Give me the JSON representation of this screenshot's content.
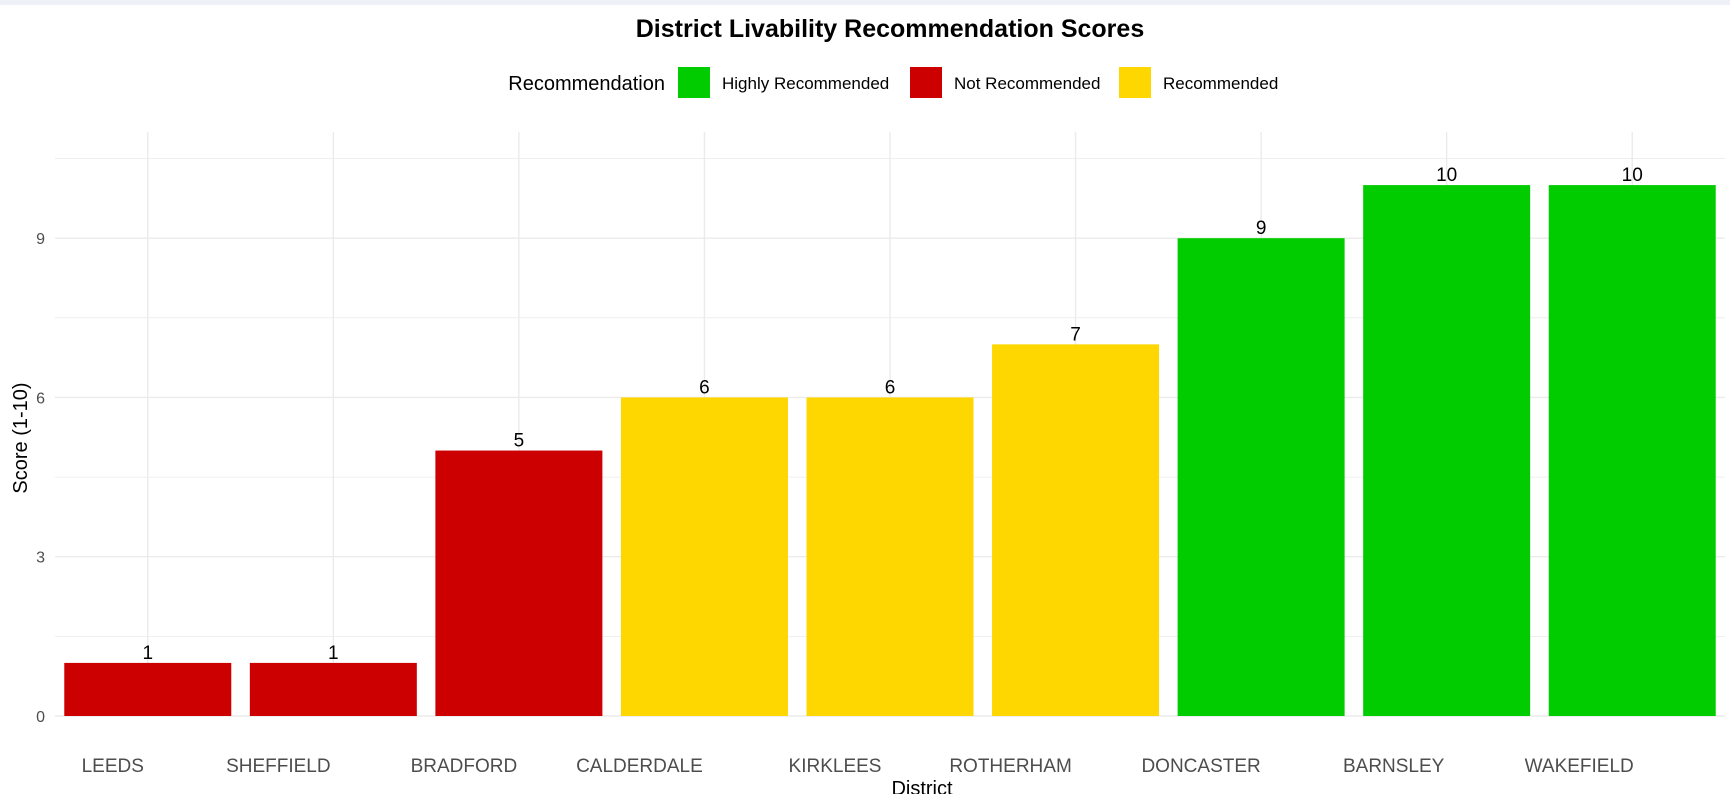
{
  "chart_data": {
    "type": "bar",
    "title": "District Livability Recommendation Scores",
    "xlabel": "District",
    "ylabel": "Score (1-10)",
    "ylim": [
      0,
      11
    ],
    "yticks": [
      0,
      3,
      6,
      9
    ],
    "grid": true,
    "legend": {
      "title": "Recommendation",
      "placement": "top",
      "entries": [
        {
          "name": "Highly Recommended",
          "color": "#00CC00"
        },
        {
          "name": "Not Recommended",
          "color": "#CC0000"
        },
        {
          "name": "Recommended",
          "color": "#FFD700"
        }
      ]
    },
    "categories": [
      "LEEDS",
      "SHEFFIELD",
      "BRADFORD",
      "CALDERDALE",
      "KIRKLEES",
      "ROTHERHAM",
      "DONCASTER",
      "BARNSLEY",
      "WAKEFIELD"
    ],
    "values": [
      1,
      1,
      5,
      6,
      6,
      7,
      9,
      10,
      10
    ],
    "recommendation": [
      "Not Recommended",
      "Not Recommended",
      "Not Recommended",
      "Recommended",
      "Recommended",
      "Recommended",
      "Highly Recommended",
      "Highly Recommended",
      "Highly Recommended"
    ]
  }
}
